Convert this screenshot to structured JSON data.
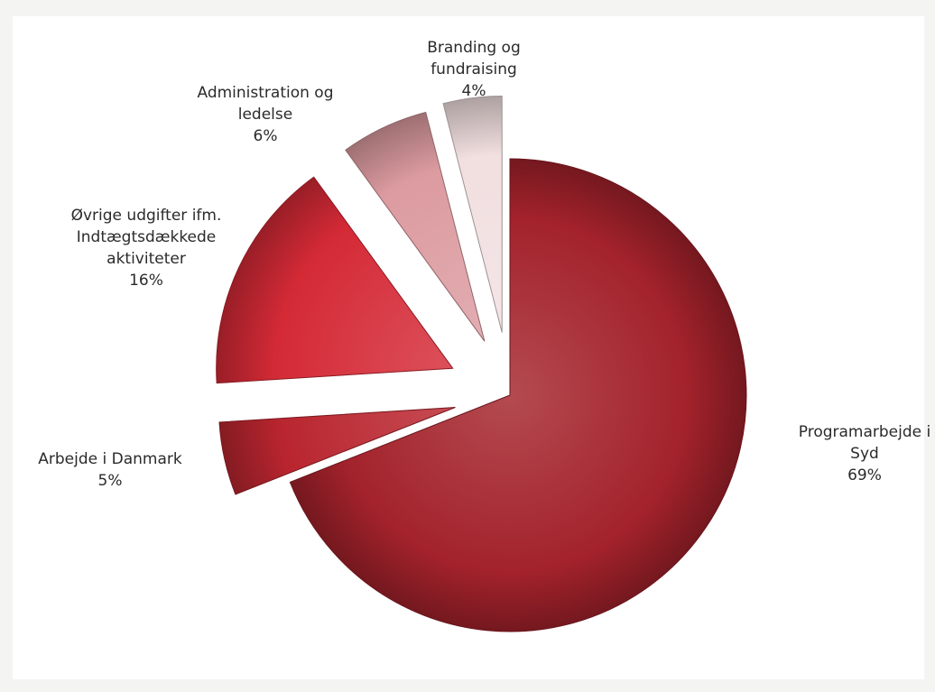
{
  "chart_data": {
    "type": "pie",
    "exploded": true,
    "slices": [
      {
        "name": "Programarbejde i Syd",
        "label_lines": [
          "Programarbejde i",
          "Syd"
        ],
        "value": 69,
        "value_label": "69%",
        "color": "#a3222b"
      },
      {
        "name": "Arbejde i Danmark",
        "label_lines": [
          "Arbejde i Danmark"
        ],
        "value": 5,
        "value_label": "5%",
        "color": "#b9252f"
      },
      {
        "name": "Øvrige udgifter ifm. Indtægtsdækkede aktiviteter",
        "label_lines": [
          "Øvrige udgifter ifm.",
          "Indtægtsdækkede",
          "aktiviteter"
        ],
        "value": 16,
        "value_label": "16%",
        "color": "#d42a36"
      },
      {
        "name": "Administration og ledelse",
        "label_lines": [
          "Administration og",
          "ledelse"
        ],
        "value": 6,
        "value_label": "6%",
        "color": "#dc9ba0"
      },
      {
        "name": "Branding og fundraising",
        "label_lines": [
          "Branding og",
          "fundraising"
        ],
        "value": 4,
        "value_label": "4%",
        "color": "#f2dfe0"
      }
    ]
  }
}
